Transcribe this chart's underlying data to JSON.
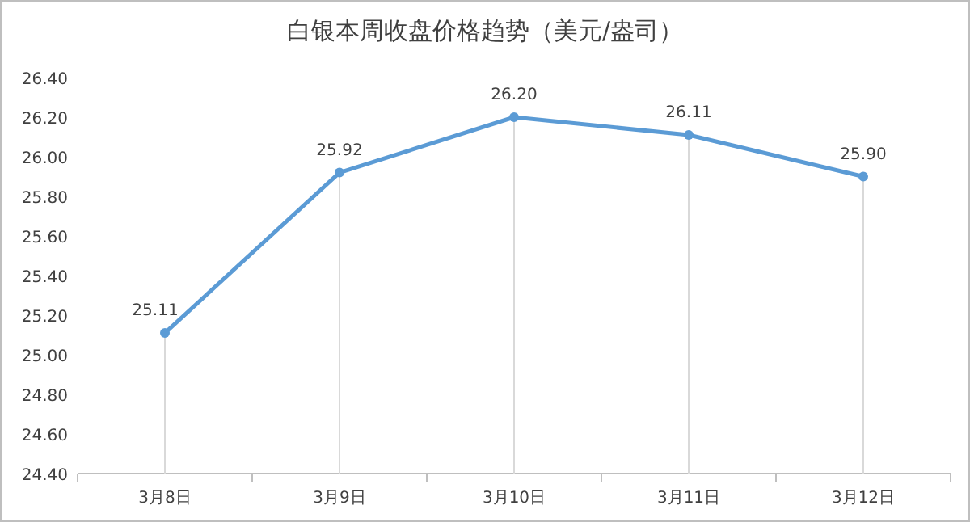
{
  "chart_data": {
    "type": "line",
    "title": "白银本周收盘价格趋势（美元/盎司）",
    "categories": [
      "3月8日",
      "3月9日",
      "3月10日",
      "3月11日",
      "3月12日"
    ],
    "series": [
      {
        "color": "#5b9bd5",
        "values": [
          25.11,
          25.92,
          26.2,
          26.11,
          25.9
        ],
        "value_labels": [
          "25.11",
          "25.92",
          "26.20",
          "26.11",
          "25.90"
        ]
      }
    ],
    "ylim": [
      24.4,
      26.4
    ],
    "yticks": [
      {
        "value": 24.4,
        "label": "24.40"
      },
      {
        "value": 24.6,
        "label": "24.60"
      },
      {
        "value": 24.8,
        "label": "24.80"
      },
      {
        "value": 25.0,
        "label": "25.00"
      },
      {
        "value": 25.2,
        "label": "25.20"
      },
      {
        "value": 25.4,
        "label": "25.40"
      },
      {
        "value": 25.6,
        "label": "25.60"
      },
      {
        "value": 25.8,
        "label": "25.80"
      },
      {
        "value": 26.0,
        "label": "26.00"
      },
      {
        "value": 26.2,
        "label": "26.20"
      },
      {
        "value": 26.4,
        "label": "26.40"
      }
    ],
    "marker": "circle",
    "grid": "x"
  }
}
